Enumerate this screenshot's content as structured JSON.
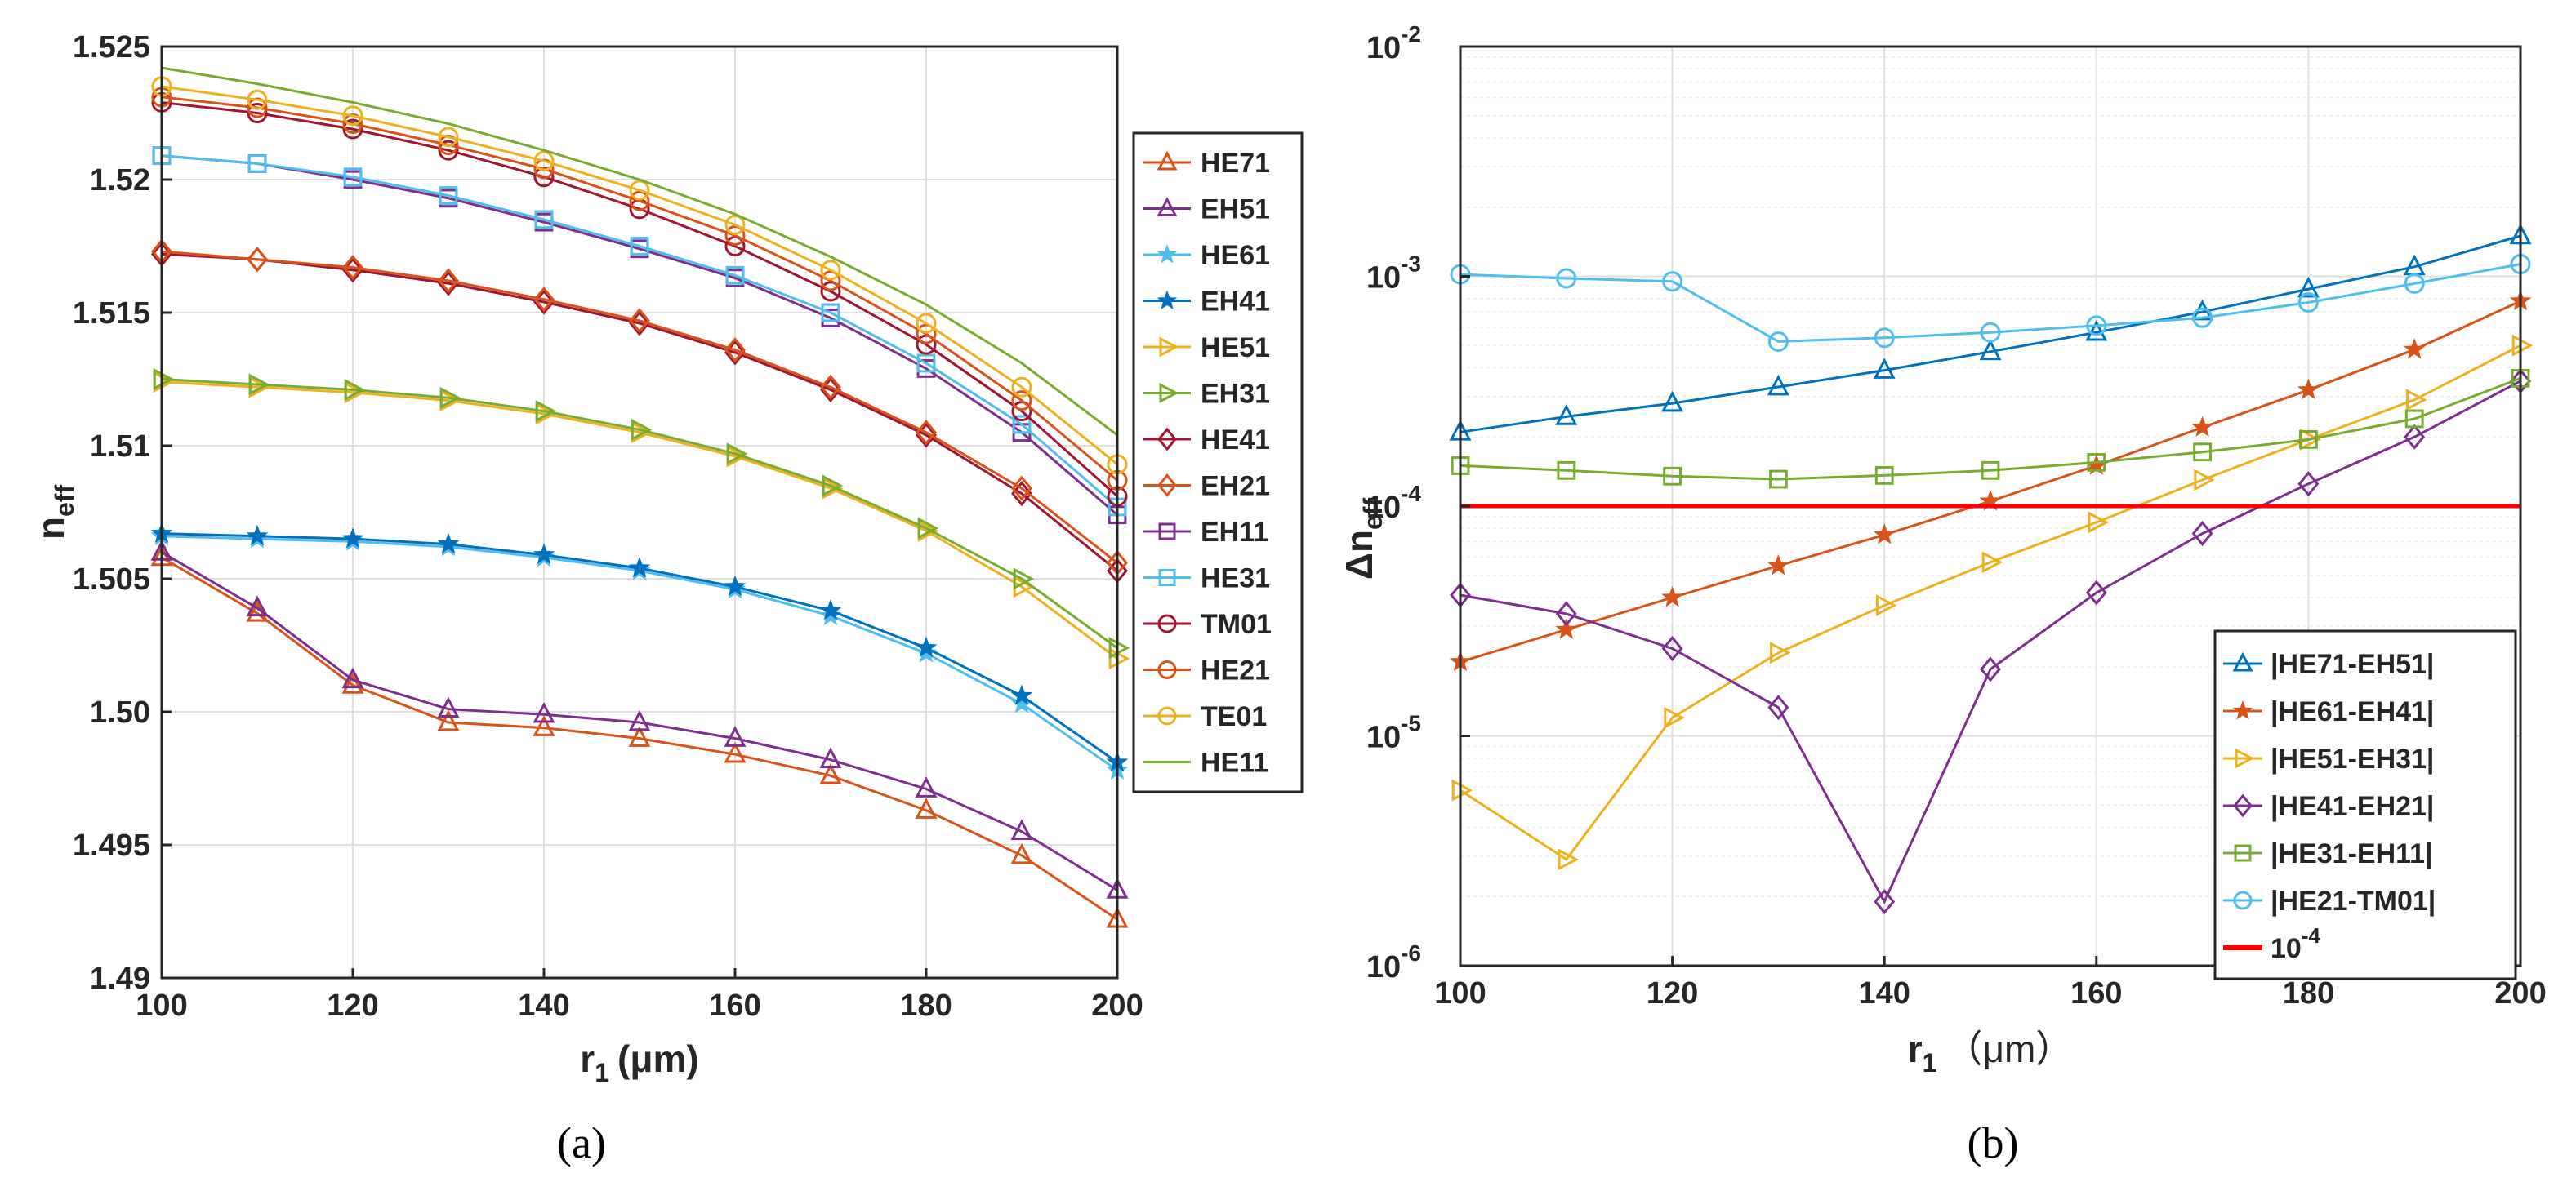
{
  "chart_data": [
    {
      "panel": "a",
      "type": "line",
      "caption": "(a)",
      "xlabel": "r",
      "xlabel_sub": "1",
      "xlabel_unit": "(μm)",
      "ylabel": "n",
      "ylabel_sub": "eff",
      "xlim": [
        100,
        200
      ],
      "ylim": [
        1.49,
        1.525
      ],
      "xticks": [
        "100",
        "120",
        "140",
        "160",
        "180",
        "200"
      ],
      "yticks": [
        "1.49",
        "1.495",
        "1.50",
        "1.505",
        "1.51",
        "1.515",
        "1.52",
        "1.525"
      ],
      "grid": true,
      "legend_position": "outside-right",
      "x": [
        100,
        110,
        120,
        130,
        140,
        150,
        160,
        170,
        180,
        190,
        200
      ],
      "series": [
        {
          "name": "HE71",
          "color": "#D95319",
          "marker": "triangle-up",
          "values": [
            1.5058,
            1.5037,
            1.501,
            1.4996,
            1.4994,
            1.499,
            1.4984,
            1.4976,
            1.4963,
            1.4946,
            1.4922
          ]
        },
        {
          "name": "EH51",
          "color": "#7E2F8E",
          "marker": "triangle-up",
          "values": [
            1.506,
            1.5039,
            1.5012,
            1.5001,
            1.4999,
            1.4996,
            1.499,
            1.4982,
            1.4971,
            1.4955,
            1.4933
          ]
        },
        {
          "name": "HE61",
          "color": "#4DBEEE",
          "marker": "star",
          "values": [
            1.5066,
            1.5065,
            1.5064,
            1.5062,
            1.5058,
            1.5053,
            1.5046,
            1.5036,
            1.5022,
            1.5003,
            1.4978
          ]
        },
        {
          "name": "EH41",
          "color": "#0072BD",
          "marker": "star",
          "values": [
            1.5067,
            1.5066,
            1.5065,
            1.5063,
            1.5059,
            1.5054,
            1.5047,
            1.5038,
            1.5024,
            1.5006,
            1.4981
          ]
        },
        {
          "name": "HE51",
          "color": "#EDB120",
          "marker": "triangle-right",
          "values": [
            1.5124,
            1.5122,
            1.512,
            1.5117,
            1.5112,
            1.5105,
            1.5096,
            1.5084,
            1.5068,
            1.5047,
            1.502
          ]
        },
        {
          "name": "EH31",
          "color": "#77AC30",
          "marker": "triangle-right",
          "values": [
            1.5125,
            1.5123,
            1.5121,
            1.5118,
            1.5113,
            1.5106,
            1.5097,
            1.5085,
            1.5069,
            1.505,
            1.5024
          ]
        },
        {
          "name": "HE41",
          "color": "#A2142F",
          "marker": "diamond",
          "values": [
            1.5172,
            1.517,
            1.5166,
            1.5161,
            1.5154,
            1.5146,
            1.5135,
            1.5121,
            1.5104,
            1.5082,
            1.5053
          ]
        },
        {
          "name": "EH21",
          "color": "#D95319",
          "marker": "diamond",
          "values": [
            1.5173,
            1.517,
            1.5167,
            1.5162,
            1.5155,
            1.5147,
            1.5136,
            1.5122,
            1.5105,
            1.5084,
            1.5056
          ]
        },
        {
          "name": "EH11",
          "color": "#7E2F8E",
          "marker": "square",
          "values": [
            1.5209,
            1.5206,
            1.52,
            1.5193,
            1.5184,
            1.5174,
            1.5163,
            1.5148,
            1.5129,
            1.5105,
            1.5074
          ]
        },
        {
          "name": "HE31",
          "color": "#4DBEEE",
          "marker": "square",
          "values": [
            1.5209,
            1.5206,
            1.5201,
            1.5194,
            1.5185,
            1.5175,
            1.5164,
            1.515,
            1.5131,
            1.5108,
            1.5077
          ]
        },
        {
          "name": "TM01",
          "color": "#A2142F",
          "marker": "circle",
          "values": [
            1.5229,
            1.5225,
            1.5219,
            1.5211,
            1.5201,
            1.5189,
            1.5175,
            1.5158,
            1.5138,
            1.5113,
            1.5081
          ]
        },
        {
          "name": "HE21",
          "color": "#D95319",
          "marker": "circle",
          "values": [
            1.5231,
            1.5227,
            1.5221,
            1.5213,
            1.5204,
            1.5192,
            1.5179,
            1.5162,
            1.5142,
            1.5117,
            1.5087
          ]
        },
        {
          "name": "TE01",
          "color": "#EDB120",
          "marker": "circle",
          "values": [
            1.5235,
            1.523,
            1.5224,
            1.5216,
            1.5207,
            1.5196,
            1.5183,
            1.5166,
            1.5146,
            1.5122,
            1.5093
          ]
        },
        {
          "name": "HE11",
          "color": "#77AC30",
          "marker": "none",
          "values": [
            1.5242,
            1.5236,
            1.5229,
            1.5221,
            1.5211,
            1.52,
            1.5187,
            1.5171,
            1.5153,
            1.5131,
            1.5104
          ]
        }
      ]
    },
    {
      "panel": "b",
      "type": "line",
      "caption": "(b)",
      "xlabel": "r",
      "xlabel_sub": "1",
      "xlabel_unit": "（μm）",
      "ylabel": "Δn",
      "ylabel_sub": "eff",
      "yscale": "log",
      "xlim": [
        100,
        200
      ],
      "ylim": [
        1e-06,
        0.01
      ],
      "xticks": [
        "100",
        "120",
        "140",
        "160",
        "180",
        "200"
      ],
      "yticks": [
        {
          "base": "10",
          "exp": "-6",
          "value": 1e-06
        },
        {
          "base": "10",
          "exp": "-5",
          "value": 1e-05
        },
        {
          "base": "10",
          "exp": "-4",
          "value": 0.0001
        },
        {
          "base": "10",
          "exp": "-3",
          "value": 0.001
        },
        {
          "base": "10",
          "exp": "-2",
          "value": 0.01
        }
      ],
      "grid": true,
      "legend_position": "bottom-right",
      "x": [
        100,
        110,
        120,
        130,
        140,
        150,
        160,
        170,
        180,
        190,
        200
      ],
      "series": [
        {
          "name": "|HE71-EH51|",
          "color": "#0072BD",
          "marker": "triangle-up",
          "values": [
            0.00021,
            0.000245,
            0.00028,
            0.00033,
            0.00039,
            0.00047,
            0.00057,
            0.0007,
            0.00088,
            0.0011,
            0.0015
          ]
        },
        {
          "name": "|HE61-EH41|",
          "color": "#D95319",
          "marker": "star",
          "values": [
            2.1e-05,
            2.9e-05,
            4e-05,
            5.5e-05,
            7.5e-05,
            0.000105,
            0.00015,
            0.00022,
            0.00032,
            0.00048,
            0.00078
          ]
        },
        {
          "name": "|HE51-EH31|",
          "color": "#EDB120",
          "marker": "triangle-right",
          "values": [
            5.8e-06,
            2.9e-06,
            1.2e-05,
            2.3e-05,
            3.7e-05,
            5.7e-05,
            8.5e-05,
            0.00013,
            0.000195,
            0.00029,
            0.0005
          ]
        },
        {
          "name": "|HE41-EH21|",
          "color": "#7E2F8E",
          "marker": "diamond",
          "values": [
            4.1e-05,
            3.4e-05,
            2.4e-05,
            1.33e-05,
            1.9e-06,
            1.95e-05,
            4.2e-05,
            7.6e-05,
            0.000125,
            0.0002,
            0.00035
          ]
        },
        {
          "name": "|HE31-EH11|",
          "color": "#77AC30",
          "marker": "square",
          "values": [
            0.00015,
            0.000143,
            0.000135,
            0.000131,
            0.000136,
            0.000143,
            0.000155,
            0.000172,
            0.000195,
            0.00024,
            0.00036
          ]
        },
        {
          "name": "|HE21-TM01|",
          "color": "#4DBEEE",
          "marker": "circle",
          "values": [
            0.00102,
            0.00098,
            0.00095,
            0.00052,
            0.00054,
            0.00057,
            0.00061,
            0.00066,
            0.00077,
            0.00093,
            0.00113
          ]
        },
        {
          "name": "10",
          "name_sup": "-4",
          "color": "#FF0000",
          "marker": "none",
          "line_width": "thick",
          "values": [
            0.0001,
            0.0001,
            0.0001,
            0.0001,
            0.0001,
            0.0001,
            0.0001,
            0.0001,
            0.0001,
            0.0001,
            0.0001
          ]
        }
      ]
    }
  ]
}
